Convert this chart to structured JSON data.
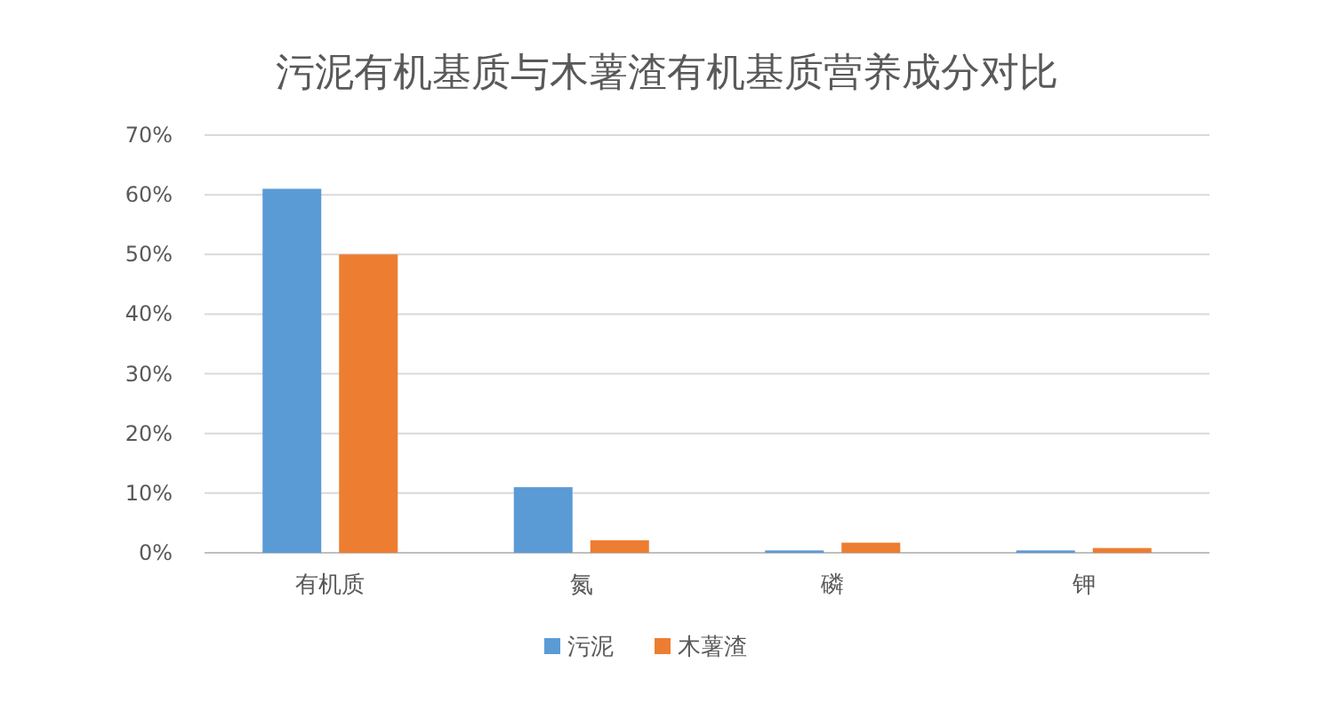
{
  "chart_data": {
    "type": "bar",
    "title": "污泥有机基质与木薯渣有机基质营养成分对比",
    "categories": [
      "有机质",
      "氮",
      "磷",
      "钾"
    ],
    "series": [
      {
        "name": "污泥",
        "color": "#5b9bd5",
        "values": [
          61,
          11,
          0.4,
          0.4
        ]
      },
      {
        "name": "木薯渣",
        "color": "#ed7d31",
        "values": [
          50,
          2.1,
          1.7,
          0.8
        ]
      }
    ],
    "ylim": [
      0,
      70
    ],
    "yticks": [
      {
        "value": 0,
        "label": "0%"
      },
      {
        "value": 10,
        "label": "10%"
      },
      {
        "value": 20,
        "label": "20%"
      },
      {
        "value": 30,
        "label": "30%"
      },
      {
        "value": 40,
        "label": "40%"
      },
      {
        "value": 50,
        "label": "50%"
      },
      {
        "value": 60,
        "label": "60%"
      },
      {
        "value": 70,
        "label": "70%"
      }
    ],
    "grid": "y",
    "legend": "bottom"
  }
}
